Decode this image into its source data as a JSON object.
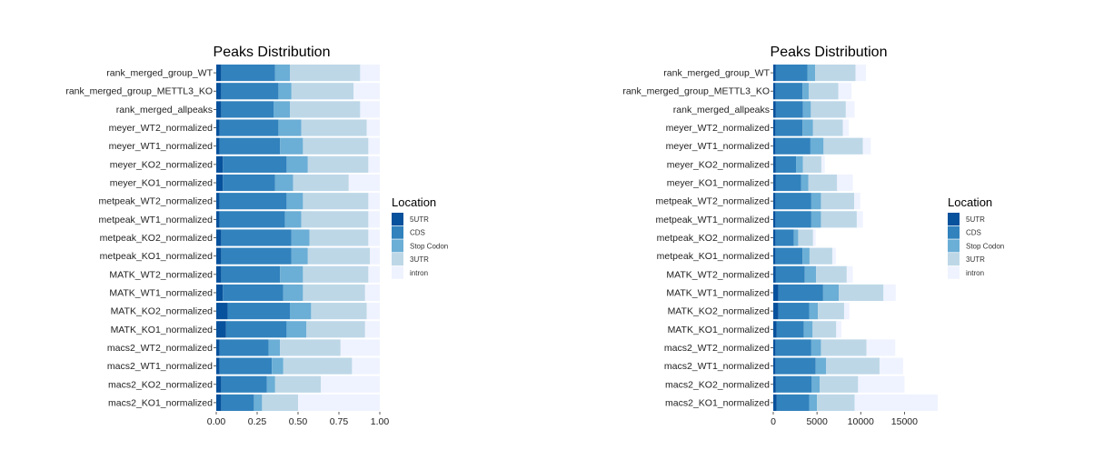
{
  "legend": {
    "title": "Location",
    "items": [
      {
        "label": "5UTR",
        "color": "#08519c"
      },
      {
        "label": "CDS",
        "color": "#3182bd"
      },
      {
        "label": "Stop Codon",
        "color": "#6baed6"
      },
      {
        "label": "3UTR",
        "color": "#bdd7e7"
      },
      {
        "label": "intron",
        "color": "#eff3ff"
      }
    ]
  },
  "chart_data": [
    {
      "type": "bar",
      "orientation": "horizontal",
      "stacked": true,
      "position": "fill",
      "title": "Peaks Distribution",
      "xlim": [
        0,
        1
      ],
      "xticks": [
        "0.00",
        "0.25",
        "0.50",
        "0.75",
        "1.00"
      ],
      "xtick_values": [
        0,
        0.25,
        0.5,
        0.75,
        1
      ],
      "categories": [
        "rank_merged_group_WT",
        "rank_merged_group_METTL3_KO",
        "rank_merged_allpeaks",
        "meyer_WT2_normalized",
        "meyer_WT1_normalized",
        "meyer_KO2_normalized",
        "meyer_KO1_normalized",
        "metpeak_WT2_normalized",
        "metpeak_WT1_normalized",
        "metpeak_KO2_normalized",
        "metpeak_KO1_normalized",
        "MATK_WT2_normalized",
        "MATK_WT1_normalized",
        "MATK_KO2_normalized",
        "MATK_KO1_normalized",
        "macs2_WT2_normalized",
        "macs2_WT1_normalized",
        "macs2_KO2_normalized",
        "macs2_KO1_normalized"
      ],
      "series": [
        {
          "name": "5UTR",
          "values": [
            0.03,
            0.03,
            0.03,
            0.02,
            0.02,
            0.04,
            0.04,
            0.02,
            0.02,
            0.03,
            0.03,
            0.03,
            0.04,
            0.07,
            0.06,
            0.02,
            0.02,
            0.03,
            0.03
          ]
        },
        {
          "name": "CDS",
          "values": [
            0.33,
            0.35,
            0.32,
            0.36,
            0.37,
            0.39,
            0.32,
            0.41,
            0.4,
            0.43,
            0.43,
            0.36,
            0.37,
            0.38,
            0.37,
            0.3,
            0.32,
            0.28,
            0.2
          ]
        },
        {
          "name": "Stop Codon",
          "values": [
            0.09,
            0.08,
            0.1,
            0.14,
            0.14,
            0.13,
            0.11,
            0.1,
            0.1,
            0.11,
            0.1,
            0.14,
            0.12,
            0.13,
            0.12,
            0.07,
            0.07,
            0.05,
            0.05
          ]
        },
        {
          "name": "3UTR",
          "values": [
            0.43,
            0.38,
            0.43,
            0.4,
            0.4,
            0.37,
            0.34,
            0.4,
            0.41,
            0.36,
            0.38,
            0.4,
            0.38,
            0.34,
            0.36,
            0.37,
            0.42,
            0.28,
            0.22
          ]
        },
        {
          "name": "intron",
          "values": [
            0.12,
            0.16,
            0.12,
            0.08,
            0.07,
            0.07,
            0.19,
            0.07,
            0.07,
            0.07,
            0.06,
            0.07,
            0.09,
            0.08,
            0.09,
            0.24,
            0.17,
            0.36,
            0.5
          ]
        }
      ]
    },
    {
      "type": "bar",
      "orientation": "horizontal",
      "stacked": true,
      "title": "Peaks Distribution",
      "xlim": [
        0,
        18700
      ],
      "xticks": [
        "0",
        "5000",
        "10000",
        "15000"
      ],
      "xtick_values": [
        0,
        5000,
        10000,
        15000
      ],
      "categories": [
        "rank_merged_group_WT",
        "rank_merged_group_METTL3_KO",
        "rank_merged_allpeaks",
        "meyer_WT2_normalized",
        "meyer_WT1_normalized",
        "meyer_KO2_normalized",
        "meyer_KO1_normalized",
        "metpeak_WT2_normalized",
        "metpeak_WT1_normalized",
        "metpeak_KO2_normalized",
        "metpeak_KO1_normalized",
        "MATK_WT2_normalized",
        "MATK_WT1_normalized",
        "MATK_KO2_normalized",
        "MATK_KO1_normalized",
        "macs2_WT2_normalized",
        "macs2_WT1_normalized",
        "macs2_KO2_normalized",
        "macs2_KO1_normalized"
      ],
      "series": [
        {
          "name": "5UTR",
          "values": [
            300,
            250,
            300,
            250,
            250,
            300,
            300,
            250,
            250,
            250,
            250,
            300,
            600,
            600,
            400,
            250,
            250,
            300,
            400
          ]
        },
        {
          "name": "CDS",
          "values": [
            3600,
            3100,
            3100,
            3100,
            4000,
            2300,
            2900,
            4100,
            4100,
            2100,
            3100,
            3300,
            5100,
            3500,
            3100,
            4100,
            4600,
            4100,
            3700
          ]
        },
        {
          "name": "Stop Codon",
          "values": [
            900,
            700,
            900,
            1200,
            1500,
            800,
            800,
            1100,
            1100,
            500,
            800,
            1300,
            1800,
            1000,
            1000,
            1100,
            1200,
            900,
            900
          ]
        },
        {
          "name": "3UTR",
          "values": [
            4600,
            3400,
            4000,
            3400,
            4500,
            2100,
            3300,
            3800,
            4100,
            1700,
            2600,
            3500,
            5100,
            3000,
            2700,
            5200,
            6100,
            4400,
            4300
          ]
        },
        {
          "name": "intron",
          "values": [
            1200,
            1500,
            1000,
            700,
            900,
            400,
            1800,
            700,
            700,
            300,
            400,
            700,
            1400,
            600,
            600,
            3300,
            2700,
            5300,
            9500
          ]
        }
      ]
    }
  ]
}
